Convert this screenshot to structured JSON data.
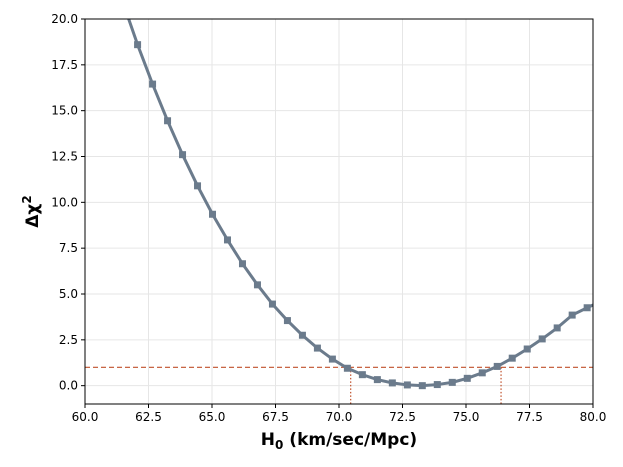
{
  "chart_data": {
    "type": "line",
    "title": "",
    "xlabel_main": "H",
    "xlabel_sub": "0",
    "xlabel_rest": " (km/sec/Mpc)",
    "ylabel_main": "Δχ",
    "ylabel_sup": "2",
    "xlim": [
      60.0,
      80.0
    ],
    "ylim": [
      -1.0,
      20.0
    ],
    "x_ticks": [
      60.0,
      62.5,
      65.0,
      67.5,
      70.0,
      72.5,
      75.0,
      77.5,
      80.0
    ],
    "x_tick_labels": [
      "60.0",
      "62.5",
      "65.0",
      "67.5",
      "70.0",
      "72.5",
      "75.0",
      "77.5",
      "80.0"
    ],
    "y_ticks": [
      0.0,
      2.5,
      5.0,
      7.5,
      10.0,
      12.5,
      15.0,
      17.5,
      20.0
    ],
    "y_tick_labels": [
      "0.0",
      "2.5",
      "5.0",
      "7.5",
      "10.0",
      "12.5",
      "15.0",
      "17.5",
      "20.0"
    ],
    "grid": true,
    "series": [
      {
        "color": "#6b7b8c",
        "marker": "square",
        "x": [
          61.72,
          62.07,
          62.66,
          63.25,
          63.84,
          64.43,
          65.02,
          65.61,
          66.2,
          66.79,
          67.38,
          67.97,
          68.56,
          69.15,
          69.74,
          70.33,
          70.92,
          71.51,
          72.1,
          72.69,
          73.28,
          73.87,
          74.46,
          75.05,
          75.64,
          76.23,
          76.82,
          77.41,
          78.0,
          78.59,
          79.18,
          79.77,
          80.0
        ],
        "y": [
          20.0,
          18.6,
          16.45,
          14.45,
          12.6,
          10.9,
          9.35,
          7.95,
          6.65,
          5.5,
          4.45,
          3.55,
          2.75,
          2.05,
          1.45,
          0.95,
          0.6,
          0.33,
          0.15,
          0.04,
          0.0,
          0.06,
          0.18,
          0.4,
          0.7,
          1.05,
          1.5,
          2.0,
          2.55,
          3.15,
          3.85,
          4.25,
          4.4
        ],
        "markers_at": [
          1,
          2,
          3,
          4,
          5,
          6,
          7,
          8,
          9,
          10,
          11,
          12,
          13,
          14,
          15,
          16,
          17,
          18,
          19,
          20,
          21,
          22,
          23,
          24,
          25,
          26,
          27,
          28,
          29,
          30,
          31
        ]
      }
    ],
    "reference_lines": {
      "color": "#c0502b",
      "horizontal_y": 1.0,
      "vertical_x": [
        70.46,
        76.38
      ]
    }
  }
}
